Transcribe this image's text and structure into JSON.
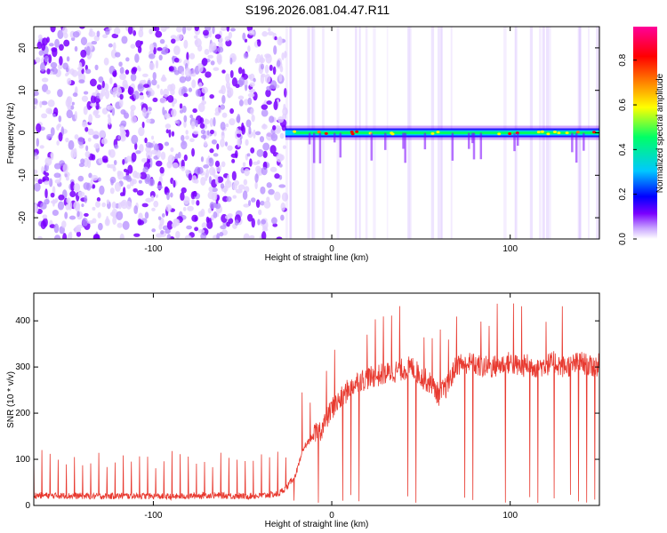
{
  "title": "S196.2026.081.04.47.R11",
  "colors": {
    "snr_line": "#e83a30",
    "axis": "#000000",
    "background": "#ffffff"
  },
  "colormap": [
    "#ffffff",
    "#7a00ff",
    "#0000ff",
    "#00c8ff",
    "#00ff66",
    "#ffff00",
    "#ff8000",
    "#ff0000",
    "#ff0099"
  ],
  "chart_data": [
    {
      "type": "heatmap",
      "title": "",
      "xlabel": "Height of straight line (km)",
      "ylabel": "Frequency (Hz)",
      "xlim": [
        -167,
        150
      ],
      "ylim": [
        -25,
        25
      ],
      "xticks": [
        -100,
        0,
        100
      ],
      "xtick_labels": [
        "-100",
        "0",
        "100"
      ],
      "yticks": [
        -20,
        -10,
        0,
        10,
        20
      ],
      "ytick_labels": [
        "-20",
        "-10",
        "0",
        "10",
        "20"
      ],
      "noise_region_x": [
        -167,
        -26
      ],
      "signal_band_x": [
        -26,
        150
      ],
      "signal_frequency_hz": 0,
      "colorbar": {
        "label": "Normalized spectral amplitude",
        "range": [
          0,
          0.95
        ],
        "ticks": [
          0.0,
          0.2,
          0.4,
          0.6,
          0.8
        ],
        "tick_labels": [
          "0.0",
          "0.2",
          "0.4",
          "0.6",
          "0.8"
        ]
      }
    },
    {
      "type": "line",
      "title": "",
      "xlabel": "Height of straight line (km)",
      "ylabel": "SNR (10 * v/v)",
      "xlim": [
        -167,
        150
      ],
      "ylim": [
        0,
        460
      ],
      "xticks": [
        -100,
        0,
        100
      ],
      "xtick_labels": [
        "-100",
        "0",
        "100"
      ],
      "yticks": [
        0,
        100,
        200,
        300,
        400
      ],
      "ytick_labels": [
        "0",
        "100",
        "200",
        "300",
        "400"
      ],
      "series": [
        {
          "name": "SNR",
          "x": [
            -167,
            -150,
            -130,
            -110,
            -90,
            -70,
            -50,
            -40,
            -30,
            -25,
            -20,
            -15,
            -10,
            -5,
            0,
            5,
            10,
            15,
            20,
            25,
            30,
            35,
            40,
            45,
            50,
            55,
            60,
            65,
            70,
            75,
            80,
            85,
            90,
            95,
            100,
            105,
            110,
            115,
            120,
            125,
            130,
            135,
            140,
            145,
            150
          ],
          "values": [
            22,
            21,
            20,
            21,
            19,
            22,
            20,
            21,
            25,
            40,
            70,
            130,
            150,
            170,
            210,
            230,
            255,
            270,
            275,
            280,
            285,
            290,
            295,
            300,
            280,
            265,
            240,
            260,
            305,
            310,
            305,
            300,
            300,
            305,
            310,
            300,
            305,
            300,
            305,
            310,
            300,
            305,
            310,
            300,
            305
          ]
        }
      ]
    }
  ]
}
